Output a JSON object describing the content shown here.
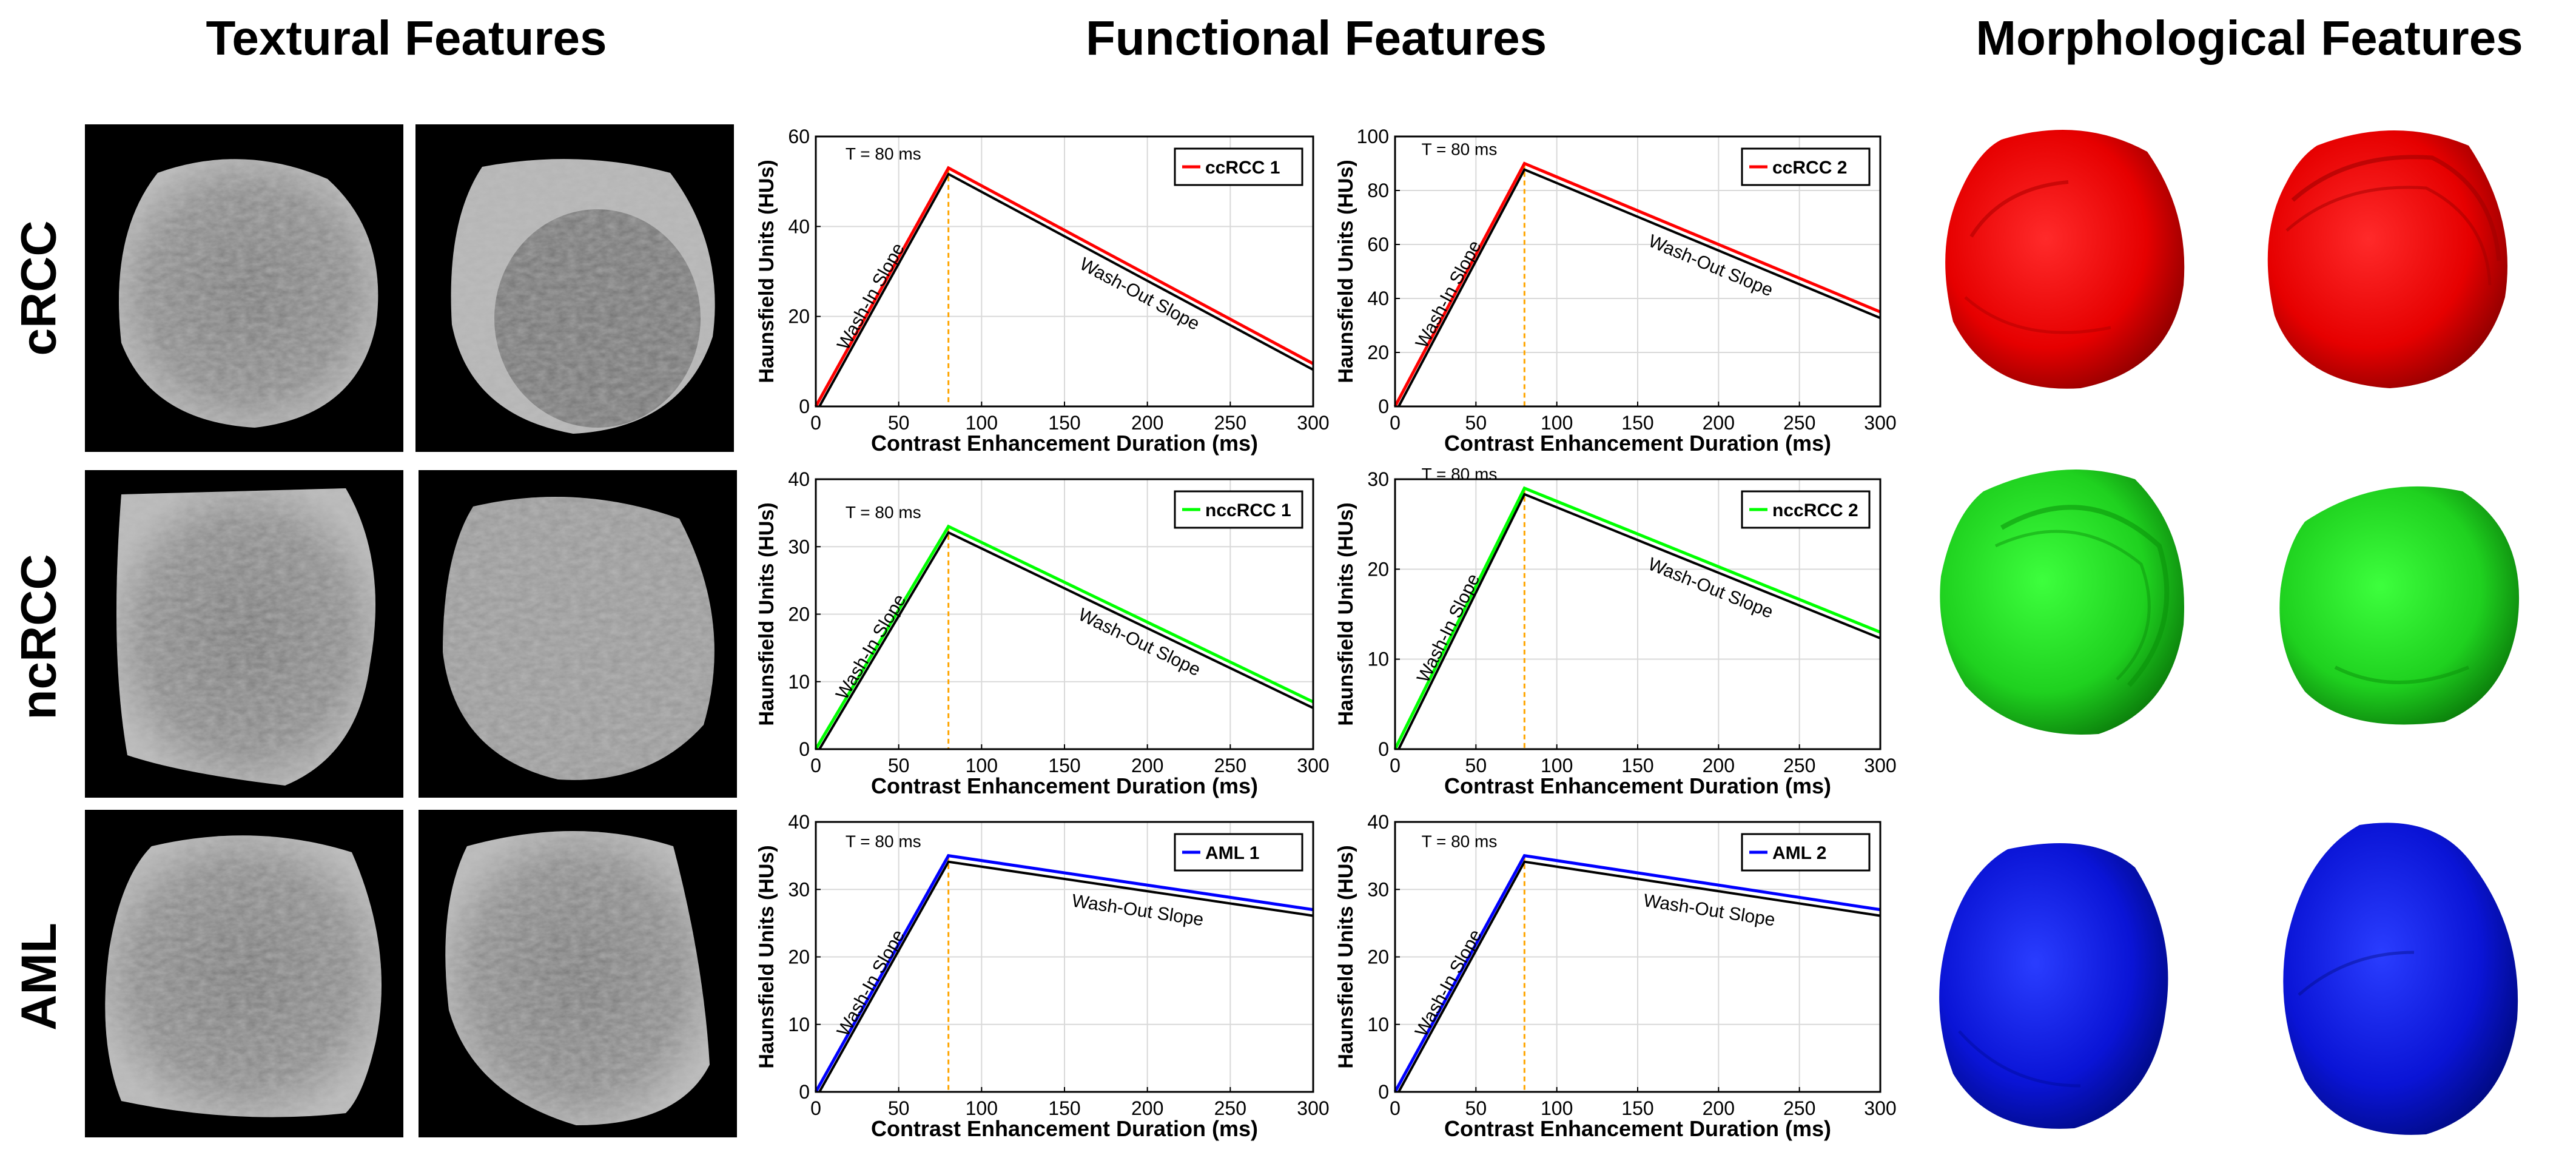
{
  "headings": {
    "textural": "Textural Features",
    "functional": "Functional Features",
    "morphological": "Morphological  Features"
  },
  "rows": [
    {
      "label": "cRCC"
    },
    {
      "label": "ncRCC"
    },
    {
      "label": "AML"
    }
  ],
  "colors": {
    "ccRCC": "#ff0000",
    "nccRCC": "#00ff00",
    "AML": "#0000ff",
    "onset_line": "#ffa500",
    "frame": "#000000",
    "grid": "#d9d9d9"
  },
  "chart_data": [
    {
      "type": "line",
      "xlabel": "Contrast Enhancement Duration (ms)",
      "ylabel": "Haunsfield Units (HUs)",
      "xlim": [
        0,
        300
      ],
      "ylim": [
        0,
        60
      ],
      "xticks": [
        0,
        50,
        100,
        150,
        200,
        250,
        300
      ],
      "yticks": [
        0,
        20,
        40,
        60
      ],
      "grid": true,
      "legend_position": "top-right",
      "t_label": "T = 80 ms",
      "wash_in_label": "Wash-In Slope",
      "wash_out_label": "Wash-Out Slope",
      "series": [
        {
          "name": "ccRCC 1",
          "color": "#ff0000",
          "x": [
            0,
            80,
            300
          ],
          "y": [
            0,
            53,
            9.5
          ]
        }
      ]
    },
    {
      "type": "line",
      "xlabel": "Contrast Enhancement Duration (ms)",
      "ylabel": "Haunsfield Units (HUs)",
      "xlim": [
        0,
        300
      ],
      "ylim": [
        0,
        100
      ],
      "xticks": [
        0,
        50,
        100,
        150,
        200,
        250,
        300
      ],
      "yticks": [
        0,
        20,
        40,
        60,
        80,
        100
      ],
      "grid": true,
      "legend_position": "top-right",
      "t_label": "T = 80 ms",
      "wash_in_label": "Wash-In Slope",
      "wash_out_label": "Wash-Out Slope",
      "series": [
        {
          "name": "ccRCC 2",
          "color": "#ff0000",
          "x": [
            0,
            80,
            300
          ],
          "y": [
            0,
            90,
            35
          ]
        }
      ]
    },
    {
      "type": "line",
      "xlabel": "Contrast Enhancement Duration (ms)",
      "ylabel": "Haunsfield Units (HUs)",
      "xlim": [
        0,
        300
      ],
      "ylim": [
        0,
        40
      ],
      "xticks": [
        0,
        50,
        100,
        150,
        200,
        250,
        300
      ],
      "yticks": [
        0,
        10,
        20,
        30,
        40
      ],
      "grid": true,
      "legend_position": "top-right",
      "t_label": "T = 80 ms",
      "wash_in_label": "Wash-In Slope",
      "wash_out_label": "Wash-Out Slope",
      "series": [
        {
          "name": "nccRCC 1",
          "color": "#00ff00",
          "x": [
            0,
            80,
            300
          ],
          "y": [
            0,
            33,
            7
          ]
        }
      ]
    },
    {
      "type": "line",
      "xlabel": "Contrast Enhancement Duration (ms)",
      "ylabel": "Haunsfield Units (HUs)",
      "xlim": [
        0,
        300
      ],
      "ylim": [
        0,
        30
      ],
      "xticks": [
        0,
        50,
        100,
        150,
        200,
        250,
        300
      ],
      "yticks": [
        0,
        10,
        20,
        30
      ],
      "grid": true,
      "legend_position": "top-right",
      "t_label": "T = 80 ms",
      "wash_in_label": "Wash-In Slope",
      "wash_out_label": "Wash-Out Slope",
      "series": [
        {
          "name": "nccRCC 2",
          "color": "#00ff00",
          "x": [
            0,
            80,
            300
          ],
          "y": [
            0,
            29,
            13
          ]
        }
      ]
    },
    {
      "type": "line",
      "xlabel": "Contrast Enhancement Duration (ms)",
      "ylabel": "Haunsfield Units (HUs)",
      "xlim": [
        0,
        300
      ],
      "ylim": [
        0,
        40
      ],
      "xticks": [
        0,
        50,
        100,
        150,
        200,
        250,
        300
      ],
      "yticks": [
        0,
        10,
        20,
        30,
        40
      ],
      "grid": true,
      "legend_position": "top-right",
      "t_label": "T = 80 ms",
      "wash_in_label": "Wash-In Slope",
      "wash_out_label": "Wash-Out Slope",
      "series": [
        {
          "name": "AML 1",
          "color": "#0000ff",
          "x": [
            0,
            80,
            300
          ],
          "y": [
            0,
            35,
            27
          ]
        }
      ]
    },
    {
      "type": "line",
      "xlabel": "Contrast Enhancement Duration (ms)",
      "ylabel": "Haunsfield Units (HUs)",
      "xlim": [
        0,
        300
      ],
      "ylim": [
        0,
        40
      ],
      "xticks": [
        0,
        50,
        100,
        150,
        200,
        250,
        300
      ],
      "yticks": [
        0,
        10,
        20,
        30,
        40
      ],
      "grid": true,
      "legend_position": "top-right",
      "t_label": "T = 80 ms",
      "wash_in_label": "Wash-In Slope",
      "wash_out_label": "Wash-Out Slope",
      "series": [
        {
          "name": "AML 2",
          "color": "#0000ff",
          "x": [
            0,
            80,
            300
          ],
          "y": [
            0,
            35,
            27
          ]
        }
      ]
    }
  ]
}
